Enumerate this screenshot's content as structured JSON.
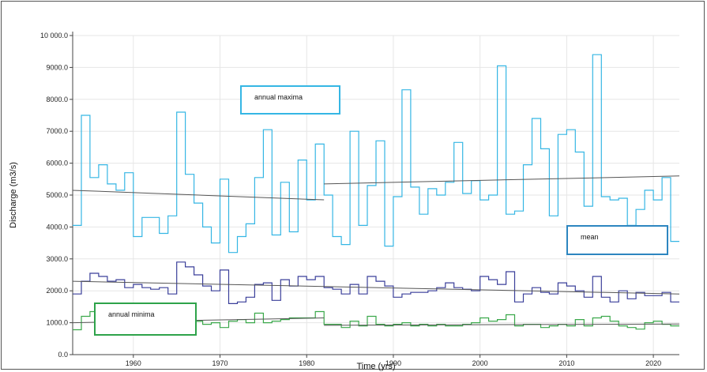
{
  "chart_data": {
    "type": "line",
    "xlabel": "Time (yrs)",
    "ylabel": "Discharge (m3/s)",
    "xlim": [
      1953,
      2023
    ],
    "ylim": [
      0,
      10000
    ],
    "x_ticks": [
      1960,
      1970,
      1980,
      1990,
      2000,
      2010,
      2020
    ],
    "y_ticks": [
      0,
      1000,
      2000,
      3000,
      4000,
      5000,
      6000,
      7000,
      8000,
      9000,
      10000
    ],
    "y_tick_labels": [
      "0.0",
      "1000.0",
      "2000.0",
      "3000.0",
      "4000.0",
      "5000.0",
      "6000.0",
      "7000.0",
      "8000.0",
      "9000.0",
      "10 000.0"
    ],
    "grid": true,
    "step": true,
    "series": [
      {
        "name": "annual maxima",
        "color": "#35b6e4",
        "x": [
          1953,
          1954,
          1955,
          1956,
          1957,
          1958,
          1959,
          1960,
          1961,
          1962,
          1963,
          1964,
          1965,
          1966,
          1967,
          1968,
          1969,
          1970,
          1971,
          1972,
          1973,
          1974,
          1975,
          1976,
          1977,
          1978,
          1979,
          1980,
          1981,
          1982,
          1983,
          1984,
          1985,
          1986,
          1987,
          1988,
          1989,
          1990,
          1991,
          1992,
          1993,
          1994,
          1995,
          1996,
          1997,
          1998,
          1999,
          2000,
          2001,
          2002,
          2003,
          2004,
          2005,
          2006,
          2007,
          2008,
          2009,
          2010,
          2011,
          2012,
          2013,
          2014,
          2015,
          2016,
          2017,
          2018,
          2019,
          2020,
          2021,
          2022
        ],
        "values": [
          4050,
          7500,
          5550,
          5950,
          5350,
          5150,
          5700,
          3700,
          4300,
          4300,
          3800,
          4350,
          7600,
          5650,
          4750,
          4000,
          3500,
          5500,
          3200,
          3700,
          4100,
          5550,
          7050,
          3750,
          5400,
          3850,
          6100,
          4850,
          6600,
          5000,
          3700,
          3450,
          7000,
          4050,
          5300,
          6700,
          3400,
          4950,
          8300,
          5250,
          4400,
          5200,
          5000,
          5400,
          6650,
          5050,
          5450,
          4850,
          5000,
          9050,
          4400,
          4500,
          5950,
          7400,
          6450,
          4350,
          6900,
          7050,
          6350,
          4650,
          9400,
          4950,
          4850,
          4900,
          4050,
          4550,
          5150,
          4850,
          5550,
          3550
        ]
      },
      {
        "name": "mean",
        "color": "#3a3f9a",
        "x": [
          1953,
          1954,
          1955,
          1956,
          1957,
          1958,
          1959,
          1960,
          1961,
          1962,
          1963,
          1964,
          1965,
          1966,
          1967,
          1968,
          1969,
          1970,
          1971,
          1972,
          1973,
          1974,
          1975,
          1976,
          1977,
          1978,
          1979,
          1980,
          1981,
          1982,
          1983,
          1984,
          1985,
          1986,
          1987,
          1988,
          1989,
          1990,
          1991,
          1992,
          1993,
          1994,
          1995,
          1996,
          1997,
          1998,
          1999,
          2000,
          2001,
          2002,
          2003,
          2004,
          2005,
          2006,
          2007,
          2008,
          2009,
          2010,
          2011,
          2012,
          2013,
          2014,
          2015,
          2016,
          2017,
          2018,
          2019,
          2020,
          2021,
          2022
        ],
        "values": [
          1900,
          2300,
          2550,
          2450,
          2300,
          2350,
          2100,
          2200,
          2100,
          2050,
          2100,
          1900,
          2900,
          2750,
          2500,
          2150,
          2000,
          2650,
          1600,
          1650,
          1800,
          2200,
          2250,
          1700,
          2350,
          2150,
          2450,
          2350,
          2450,
          2100,
          2050,
          1900,
          2200,
          1900,
          2450,
          2300,
          2150,
          1800,
          1900,
          1950,
          1950,
          2000,
          2100,
          2250,
          2100,
          2050,
          2000,
          2450,
          2350,
          2200,
          2600,
          1650,
          1900,
          2100,
          1950,
          1900,
          2250,
          2150,
          2000,
          1800,
          2450,
          1800,
          1650,
          2000,
          1750,
          1950,
          1850,
          1850,
          1950,
          1650
        ]
      },
      {
        "name": "annual minima",
        "color": "#3aa84a",
        "x": [
          1953,
          1954,
          1955,
          1956,
          1957,
          1958,
          1959,
          1960,
          1961,
          1962,
          1963,
          1964,
          1965,
          1966,
          1967,
          1968,
          1969,
          1970,
          1971,
          1972,
          1973,
          1974,
          1975,
          1976,
          1977,
          1978,
          1979,
          1980,
          1981,
          1982,
          1983,
          1984,
          1985,
          1986,
          1987,
          1988,
          1989,
          1990,
          1991,
          1992,
          1993,
          1994,
          1995,
          1996,
          1997,
          1998,
          1999,
          2000,
          2001,
          2002,
          2003,
          2004,
          2005,
          2006,
          2007,
          2008,
          2009,
          2010,
          2011,
          2012,
          2013,
          2014,
          2015,
          2016,
          2017,
          2018,
          2019,
          2020,
          2021,
          2022
        ],
        "values": [
          780,
          1200,
          1350,
          1250,
          1150,
          1000,
          1250,
          1050,
          1200,
          1000,
          1050,
          1150,
          1200,
          1350,
          1050,
          950,
          1000,
          850,
          1050,
          1100,
          1000,
          1300,
          1000,
          1050,
          1100,
          1150,
          1150,
          1150,
          1350,
          950,
          950,
          850,
          1050,
          900,
          1200,
          950,
          900,
          950,
          1000,
          900,
          950,
          900,
          950,
          900,
          900,
          950,
          1000,
          1150,
          1050,
          1100,
          1250,
          900,
          950,
          950,
          850,
          900,
          950,
          900,
          1100,
          900,
          1150,
          1200,
          1050,
          900,
          850,
          800,
          1000,
          1050,
          950,
          900
        ]
      }
    ],
    "trend_lines": [
      {
        "series": "annual maxima",
        "x": [
          1953,
          1982
        ],
        "y": [
          5150,
          4850
        ]
      },
      {
        "series": "annual maxima",
        "x": [
          1982,
          2023
        ],
        "y": [
          5350,
          5600
        ]
      },
      {
        "series": "mean",
        "x": [
          1953,
          2023
        ],
        "y": [
          2300,
          1900
        ]
      },
      {
        "series": "annual minima",
        "x": [
          1953,
          1982
        ],
        "y": [
          1000,
          1150
        ]
      },
      {
        "series": "annual minima",
        "x": [
          1982,
          2023
        ],
        "y": [
          920,
          960
        ]
      }
    ],
    "annotations": [
      {
        "text": "annual maxima",
        "border_color": "#35b6e4"
      },
      {
        "text": "mean",
        "border_color": "#2d86c0"
      },
      {
        "text": "annual minima",
        "border_color": "#2ea34a"
      }
    ]
  }
}
